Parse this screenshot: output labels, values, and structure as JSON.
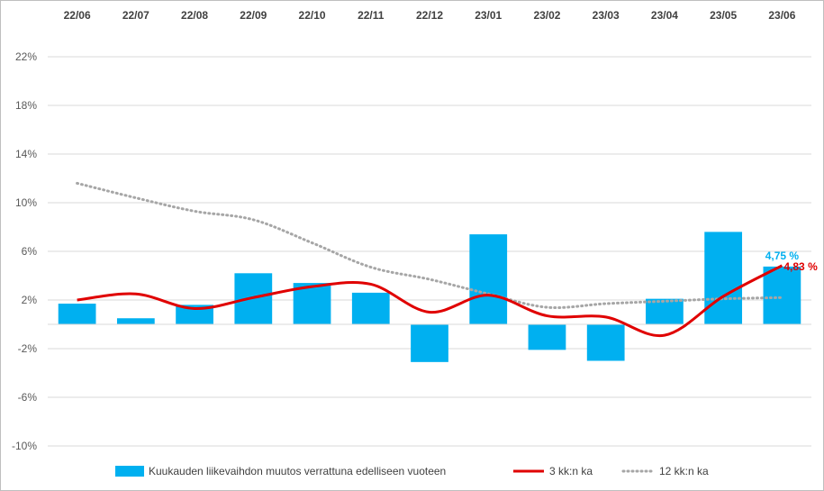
{
  "chart_data": {
    "type": "bar",
    "categories": [
      "22/06",
      "22/07",
      "22/08",
      "22/09",
      "22/10",
      "22/11",
      "22/12",
      "23/01",
      "23/02",
      "23/03",
      "23/04",
      "23/05",
      "23/06"
    ],
    "series": [
      {
        "name": "Kuukauden liikevaihdon muutos verrattuna edelliseen vuoteen",
        "type": "bar",
        "color": "#00B0F0",
        "values": [
          1.7,
          0.5,
          1.6,
          4.2,
          3.4,
          2.6,
          -3.1,
          7.4,
          -2.1,
          -3.0,
          2.1,
          7.6,
          4.75
        ]
      },
      {
        "name": "3 kk:n ka",
        "type": "line",
        "color": "#E00000",
        "values": [
          2.0,
          2.5,
          1.3,
          2.2,
          3.1,
          3.3,
          1.0,
          2.4,
          0.7,
          0.6,
          -0.9,
          2.3,
          4.83
        ]
      },
      {
        "name": "12 kk:n ka",
        "type": "line",
        "style": "dotted",
        "color": "#A6A6A6",
        "values": [
          11.6,
          10.4,
          9.3,
          8.6,
          6.7,
          4.7,
          3.7,
          2.5,
          1.4,
          1.7,
          1.9,
          2.1,
          2.2
        ]
      }
    ],
    "y_ticks": [
      "22%",
      "18%",
      "14%",
      "10%",
      "6%",
      "2%",
      "-2%",
      "-6%",
      "-10%"
    ],
    "ylim": [
      -10,
      22
    ],
    "grid": true,
    "legend": "bottom",
    "annotations": [
      {
        "text": "4,75 %",
        "color": "#00B0F0"
      },
      {
        "text": "4,83 %",
        "color": "#E00000"
      }
    ]
  }
}
